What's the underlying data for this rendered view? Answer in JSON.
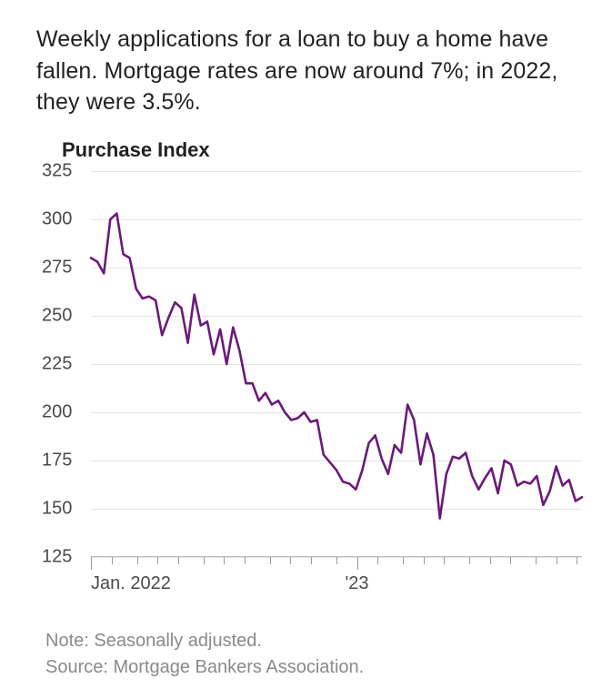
{
  "headline": "Weekly applications for a loan to buy a home have fallen. Mortgage rates are now around 7%; in 2022, they were 3.5%.",
  "chart": {
    "type": "line",
    "title": "Purchase Index",
    "line_color": "#6a1a7a",
    "line_width": 2.6,
    "background_color": "#ffffff",
    "grid_color": "#e4e4e4",
    "axis_color": "#bdbdbd",
    "tick_color": "#9a9a9a",
    "label_color": "#4a4a4a",
    "y": {
      "lim": [
        125,
        325
      ],
      "ticks": [
        125,
        150,
        175,
        200,
        225,
        250,
        275,
        300,
        325
      ],
      "fontsize": 20
    },
    "x": {
      "range_weeks": 96,
      "major_ticks": [
        {
          "week": 0,
          "label": "Jan. 2022",
          "align": "left"
        },
        {
          "week": 52,
          "label": "'23",
          "align": "center"
        }
      ],
      "minor_tick_weeks": [
        0,
        4,
        9,
        13,
        17,
        22,
        26,
        30,
        35,
        39,
        43,
        48,
        52,
        56,
        61,
        65,
        69,
        74,
        78,
        82,
        87,
        91,
        95
      ],
      "fontsize": 20
    },
    "values": [
      280,
      278,
      272,
      300,
      303,
      282,
      280,
      264,
      259,
      260,
      258,
      240,
      249,
      257,
      254,
      236,
      261,
      245,
      247,
      230,
      243,
      225,
      244,
      232,
      215,
      215,
      206,
      210,
      204,
      206,
      200,
      196,
      197,
      200,
      195,
      196,
      178,
      174,
      170,
      164,
      163,
      160,
      170,
      184,
      188,
      176,
      168,
      183,
      179,
      204,
      196,
      173,
      189,
      178,
      145,
      168,
      177,
      176,
      179,
      167,
      160,
      166,
      171,
      158,
      175,
      173,
      162,
      164,
      163,
      167,
      152,
      159,
      172,
      162,
      165,
      154,
      156
    ]
  },
  "footnote": {
    "note_label": "Note: ",
    "note_text": "Seasonally adjusted.",
    "source_label": "Source: ",
    "source_text": "Mortgage Bankers Association."
  }
}
